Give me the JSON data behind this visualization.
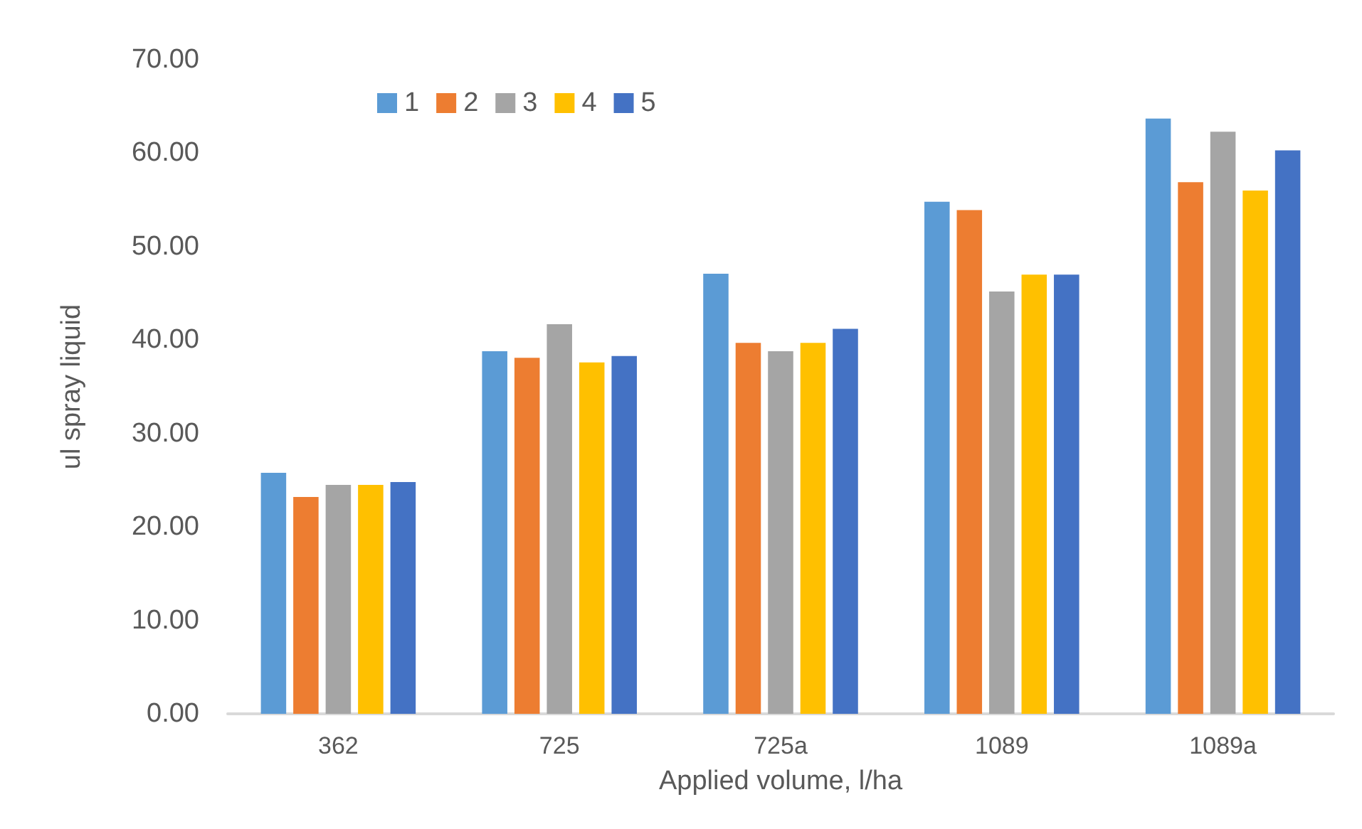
{
  "chart_data": {
    "type": "bar",
    "xlabel": "Applied volume, l/ha",
    "ylabel": "ul spray liquid",
    "categories": [
      "362",
      "725",
      "725a",
      "1089",
      "1089a"
    ],
    "series": [
      {
        "name": "1",
        "color": "#5b9bd5",
        "values": [
          25.8,
          38.8,
          47.1,
          54.8,
          63.7
        ]
      },
      {
        "name": "2",
        "color": "#ed7d31",
        "values": [
          23.2,
          38.1,
          39.7,
          53.9,
          56.9
        ]
      },
      {
        "name": "3",
        "color": "#a5a5a5",
        "values": [
          24.5,
          41.7,
          38.8,
          45.2,
          62.3
        ]
      },
      {
        "name": "4",
        "color": "#ffc000",
        "values": [
          24.5,
          37.6,
          39.7,
          47.0,
          56.0
        ]
      },
      {
        "name": "5",
        "color": "#4472c4",
        "values": [
          24.8,
          38.3,
          41.2,
          47.0,
          60.3
        ]
      }
    ],
    "ylim": [
      0,
      70
    ],
    "yticks": [
      {
        "value": 0,
        "label": "0.00"
      },
      {
        "value": 10,
        "label": "10.00"
      },
      {
        "value": 20,
        "label": "20.00"
      },
      {
        "value": 30,
        "label": "30.00"
      },
      {
        "value": 40,
        "label": "40.00"
      },
      {
        "value": 50,
        "label": "50.00"
      },
      {
        "value": 60,
        "label": "60.00"
      },
      {
        "value": 70,
        "label": "70.00"
      }
    ],
    "grid": false,
    "legend": "top"
  }
}
